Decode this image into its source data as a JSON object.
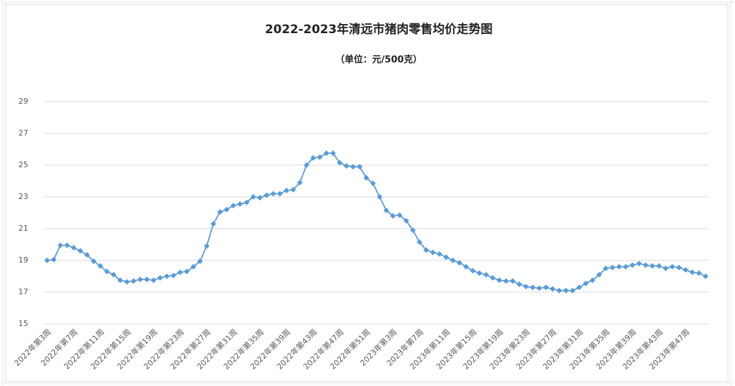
{
  "chart_data": {
    "type": "line",
    "title": "2022-2023年清远市猪肉零售均价走势图",
    "subtitle": "（单位：元/500克）",
    "categories": [
      "2022年第3周",
      null,
      null,
      null,
      "2022年第7周",
      null,
      null,
      null,
      "2022年第11周",
      null,
      null,
      null,
      "2022年第15周",
      null,
      null,
      null,
      "2022年第19周",
      null,
      null,
      null,
      "2022年第23周",
      null,
      null,
      null,
      "2022年第27周",
      null,
      null,
      null,
      "2022年第31周",
      null,
      null,
      null,
      "2022年第35周",
      null,
      null,
      null,
      "2022年第39周",
      null,
      null,
      null,
      "2022年第43周",
      null,
      null,
      null,
      "2022年第47周",
      null,
      null,
      null,
      "2022年第51周",
      null,
      null,
      null,
      "2023年第3周",
      null,
      null,
      null,
      "2023年第7周",
      null,
      null,
      null,
      "2023年第11周",
      null,
      null,
      null,
      "2023年第15周",
      null,
      null,
      null,
      "2023年第19周",
      null,
      null,
      null,
      "2023年第23周",
      null,
      null,
      null,
      "2023年第27周",
      null,
      null,
      null,
      "2023年第31周",
      null,
      null,
      null,
      "2023年第35周",
      null,
      null,
      null,
      "2023年第39周",
      null,
      null,
      null,
      "2023年第43周",
      null,
      null,
      null,
      "2023年第47周",
      null,
      null,
      null
    ],
    "values": [
      19.0,
      19.05,
      19.95,
      19.95,
      19.8,
      19.6,
      19.35,
      18.95,
      18.65,
      18.3,
      18.1,
      17.75,
      17.65,
      17.7,
      17.8,
      17.8,
      17.75,
      17.9,
      18.0,
      18.05,
      18.25,
      18.3,
      18.6,
      18.95,
      19.9,
      21.3,
      22.05,
      22.2,
      22.45,
      22.55,
      22.65,
      23.0,
      22.95,
      23.1,
      23.2,
      23.2,
      23.4,
      23.45,
      23.9,
      25.0,
      25.45,
      25.5,
      25.75,
      25.75,
      25.15,
      24.95,
      24.9,
      24.9,
      24.2,
      23.85,
      23.0,
      22.15,
      21.8,
      21.85,
      21.5,
      20.9,
      20.15,
      19.65,
      19.5,
      19.4,
      19.2,
      19.0,
      18.85,
      18.6,
      18.35,
      18.2,
      18.1,
      17.9,
      17.75,
      17.7,
      17.7,
      17.5,
      17.35,
      17.3,
      17.25,
      17.3,
      17.2,
      17.1,
      17.1,
      17.1,
      17.3,
      17.55,
      17.75,
      18.1,
      18.5,
      18.55,
      18.6,
      18.6,
      18.7,
      18.8,
      18.7,
      18.65,
      18.65,
      18.5,
      18.6,
      18.55,
      18.4,
      18.25,
      18.2,
      18.0
    ],
    "color": "#5b9bd5",
    "ylim": [
      15,
      29
    ],
    "yticks": [
      15,
      17,
      19,
      21,
      23,
      25,
      27,
      29
    ],
    "grid": true
  }
}
